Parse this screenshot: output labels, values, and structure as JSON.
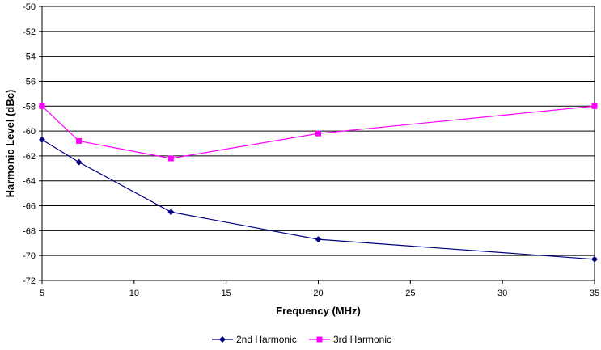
{
  "chart_data": {
    "type": "line",
    "title": "",
    "xlabel": "Frequency (MHz)",
    "ylabel": "Harmonic Level (dBc)",
    "xlim": [
      5,
      35
    ],
    "ylim": [
      -72,
      -50
    ],
    "xticks": [
      5,
      10,
      15,
      20,
      25,
      30,
      35
    ],
    "yticks": [
      -50,
      -52,
      -54,
      -56,
      -58,
      -60,
      -62,
      -64,
      -66,
      -68,
      -70,
      -72
    ],
    "grid": "horizontal",
    "legend_position": "bottom",
    "series": [
      {
        "name": "2nd Harmonic",
        "color": "#000080",
        "marker": "diamond",
        "x": [
          5,
          7,
          12,
          20,
          35
        ],
        "y": [
          -60.7,
          -62.5,
          -66.5,
          -68.7,
          -70.3
        ]
      },
      {
        "name": "3rd Harmonic",
        "color": "#FF00FF",
        "marker": "square",
        "x": [
          5,
          7,
          12,
          20,
          35
        ],
        "y": [
          -58.0,
          -60.8,
          -62.2,
          -60.2,
          -58.0
        ]
      }
    ]
  }
}
